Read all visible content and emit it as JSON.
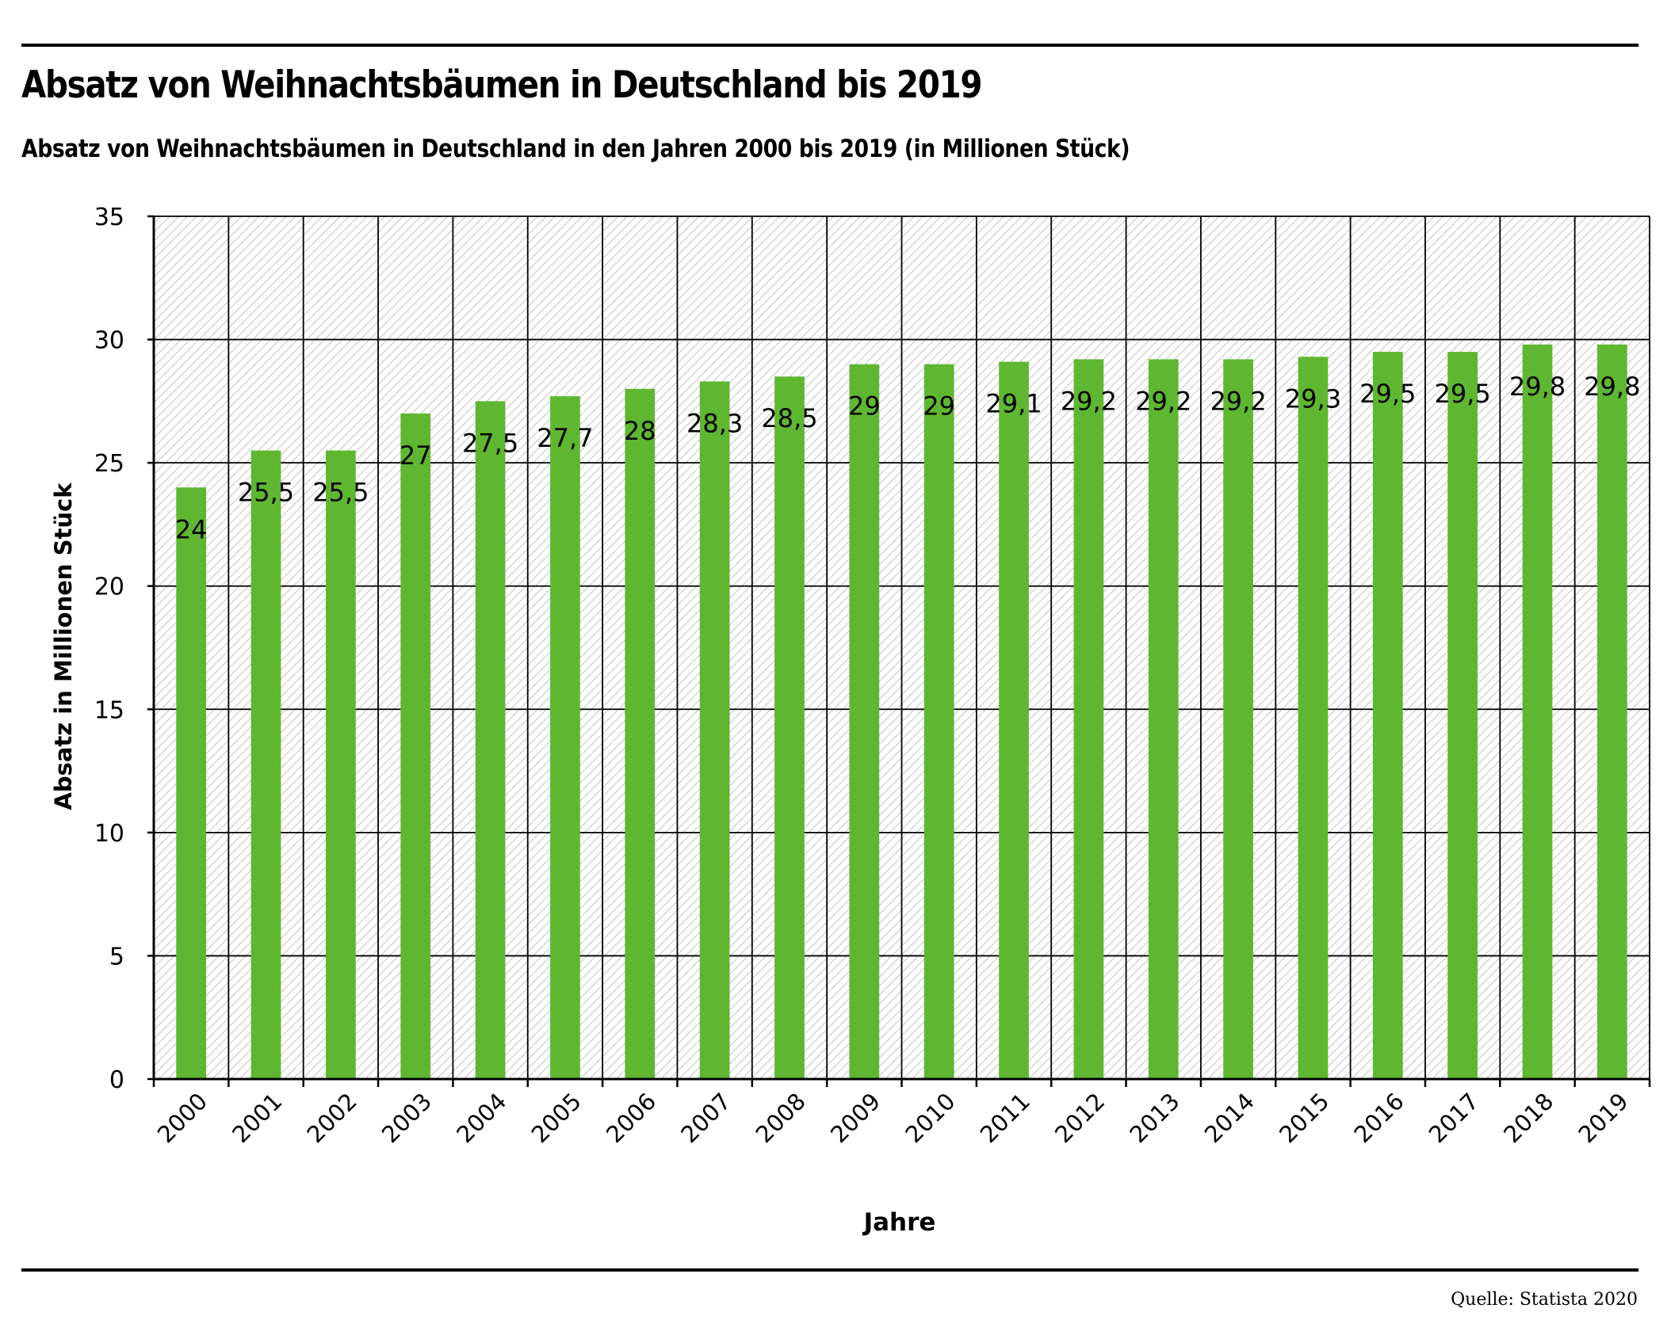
{
  "header": {
    "title": "Absatz von Weihnachtsbäumen in Deutschland bis 2019",
    "subtitle": "Absatz von Weihnachtsbäumen in Deutschland in den Jahren 2000 bis 2019 (in Millionen Stück)"
  },
  "footer": {
    "source": "Quelle: Statista 2020"
  },
  "chart_data": {
    "type": "bar",
    "title": "Absatz von Weihnachtsbäumen in Deutschland bis 2019",
    "subtitle": "Absatz von Weihnachtsbäumen in Deutschland in den Jahren 2000 bis 2019 (in Millionen Stück)",
    "xlabel": "Jahre",
    "ylabel": "Absatz in Millionen Stück",
    "categories": [
      "2000",
      "2001",
      "2002",
      "2003",
      "2004",
      "2005",
      "2006",
      "2007",
      "2008",
      "2009",
      "2010",
      "2011",
      "2012",
      "2013",
      "2014",
      "2015",
      "2016",
      "2017",
      "2018",
      "2019"
    ],
    "values": [
      24,
      25.5,
      25.5,
      27,
      27.5,
      27.7,
      28,
      28.3,
      28.5,
      29,
      29,
      29.1,
      29.2,
      29.2,
      29.2,
      29.3,
      29.5,
      29.5,
      29.8,
      29.8
    ],
    "data_labels": [
      "24",
      "25,5",
      "25,5",
      "27",
      "27,5",
      "27,7",
      "28",
      "28,3",
      "28,5",
      "29",
      "29",
      "29,1",
      "29,2",
      "29,2",
      "29,2",
      "29,3",
      "29,5",
      "29,5",
      "29,8",
      "29,8"
    ],
    "ylim": [
      0,
      35
    ],
    "yticks": [
      "0",
      "5",
      "10",
      "15",
      "20",
      "25",
      "30",
      "35"
    ],
    "grid": true,
    "background": "diagonal hatching",
    "legend": "none",
    "colors": {
      "bar": "#5fb731",
      "grid": "#000000",
      "hatch": "#c8c8c8"
    }
  }
}
